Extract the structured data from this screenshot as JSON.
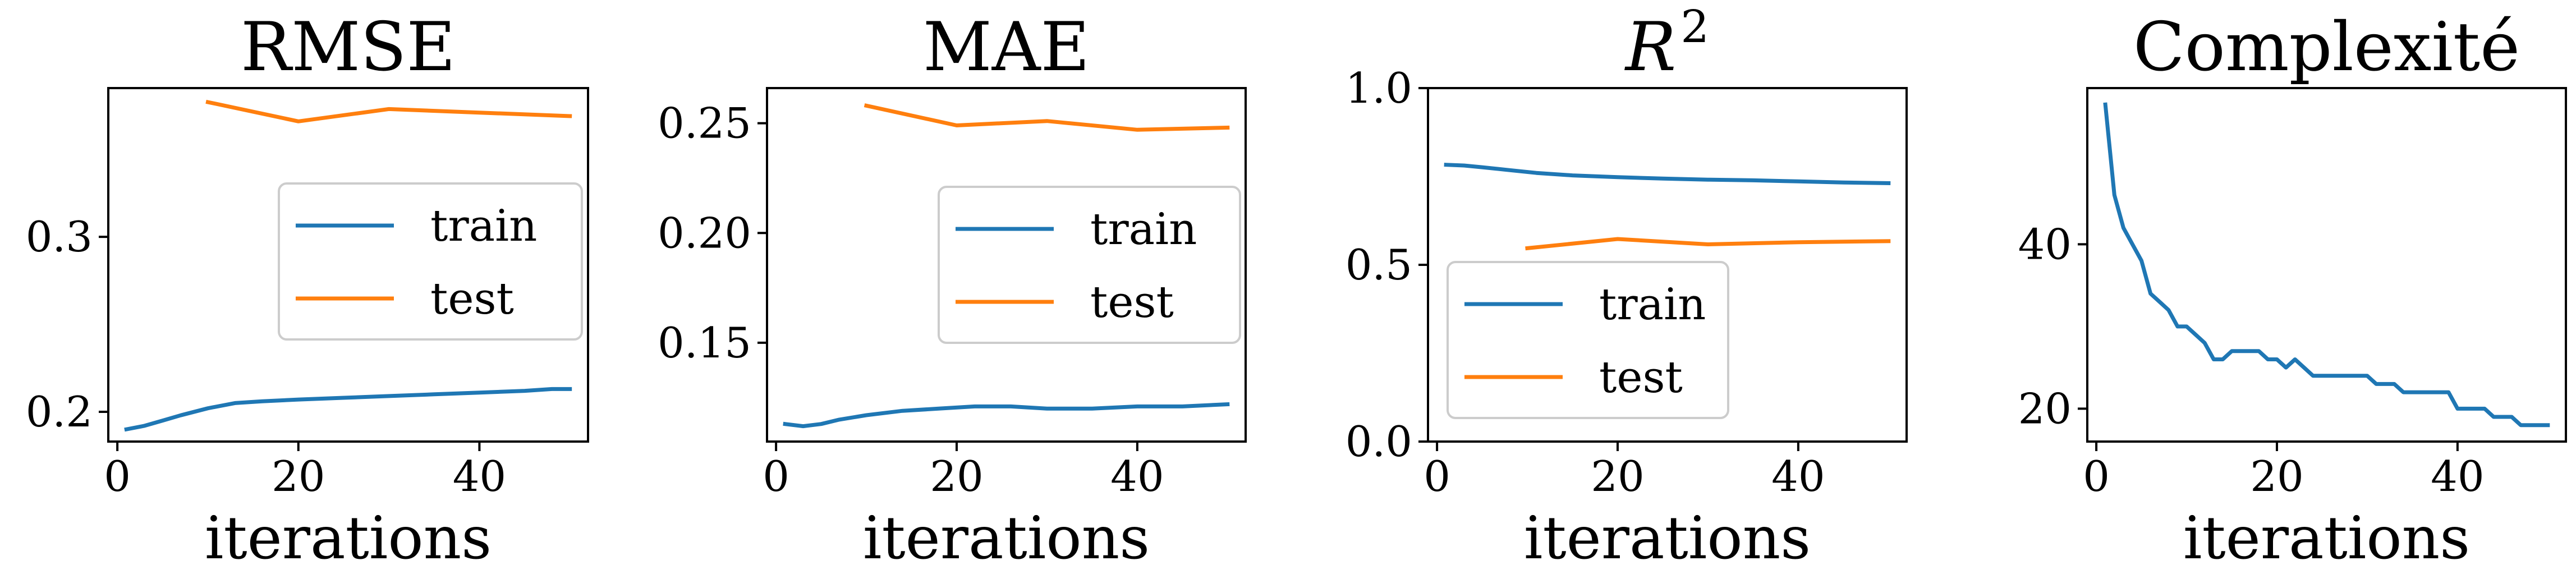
{
  "figure": {
    "colors": {
      "train": "#1f77b4",
      "test": "#ff7f0e",
      "axes": "#000000",
      "legend_border": "#cccccc"
    }
  },
  "chart_data": [
    {
      "type": "line",
      "title": "RMSE",
      "xlabel": "iterations",
      "ylabel": "",
      "xlim": [
        -1,
        52
      ],
      "ylim": [
        0.183,
        0.385
      ],
      "xticks": [
        0,
        20,
        40
      ],
      "xtick_labels": [
        "0",
        "20",
        "40"
      ],
      "yticks": [
        0.2,
        0.3
      ],
      "ytick_labels": [
        "0.2",
        "0.3"
      ],
      "grid": false,
      "legend": "center-right",
      "series": [
        {
          "name": "train",
          "color": "#1f77b4",
          "x": [
            1,
            3,
            5,
            7,
            10,
            13,
            16,
            20,
            25,
            30,
            35,
            40,
            45,
            48,
            50
          ],
          "y": [
            0.19,
            0.192,
            0.195,
            0.198,
            0.202,
            0.205,
            0.206,
            0.207,
            0.208,
            0.209,
            0.21,
            0.211,
            0.212,
            0.213,
            0.213
          ]
        },
        {
          "name": "test",
          "color": "#ff7f0e",
          "x": [
            10,
            20,
            30,
            40,
            50
          ],
          "y": [
            0.377,
            0.366,
            0.373,
            0.371,
            0.369
          ]
        }
      ]
    },
    {
      "type": "line",
      "title": "MAE",
      "xlabel": "iterations",
      "ylabel": "",
      "xlim": [
        -1,
        52
      ],
      "ylim": [
        0.105,
        0.266
      ],
      "xticks": [
        0,
        20,
        40
      ],
      "xtick_labels": [
        "0",
        "20",
        "40"
      ],
      "yticks": [
        0.15,
        0.2,
        0.25
      ],
      "ytick_labels": [
        "0.15",
        "0.20",
        "0.25"
      ],
      "grid": false,
      "legend": "center-right",
      "series": [
        {
          "name": "train",
          "color": "#1f77b4",
          "x": [
            1,
            3,
            5,
            7,
            10,
            14,
            18,
            22,
            26,
            30,
            35,
            40,
            45,
            50
          ],
          "y": [
            0.113,
            0.112,
            0.113,
            0.115,
            0.117,
            0.119,
            0.12,
            0.121,
            0.121,
            0.12,
            0.12,
            0.121,
            0.121,
            0.122
          ]
        },
        {
          "name": "test",
          "color": "#ff7f0e",
          "x": [
            10,
            20,
            30,
            40,
            50
          ],
          "y": [
            0.258,
            0.249,
            0.251,
            0.247,
            0.248
          ]
        }
      ]
    },
    {
      "type": "line",
      "title": "R",
      "title_sup": "2",
      "xlabel": "iterations",
      "ylabel": "",
      "xlim": [
        -1,
        52
      ],
      "ylim": [
        0.0,
        1.0
      ],
      "xticks": [
        0,
        20,
        40
      ],
      "xtick_labels": [
        "0",
        "20",
        "40"
      ],
      "yticks": [
        0.0,
        0.5,
        1.0
      ],
      "ytick_labels": [
        "0.0",
        "0.5",
        "1.0"
      ],
      "grid": false,
      "legend": "lower-left",
      "series": [
        {
          "name": "train",
          "color": "#1f77b4",
          "x": [
            1,
            3,
            5,
            8,
            11,
            15,
            20,
            25,
            30,
            35,
            40,
            45,
            50
          ],
          "y": [
            0.783,
            0.781,
            0.776,
            0.768,
            0.76,
            0.753,
            0.748,
            0.744,
            0.741,
            0.739,
            0.736,
            0.733,
            0.731
          ]
        },
        {
          "name": "test",
          "color": "#ff7f0e",
          "x": [
            10,
            20,
            30,
            40,
            50
          ],
          "y": [
            0.547,
            0.573,
            0.558,
            0.564,
            0.567
          ]
        }
      ]
    },
    {
      "type": "line",
      "title": "Complexité",
      "xlabel": "iterations",
      "ylabel": "",
      "xlim": [
        -1,
        52
      ],
      "ylim": [
        16,
        59
      ],
      "xticks": [
        0,
        20,
        40
      ],
      "xtick_labels": [
        "0",
        "20",
        "40"
      ],
      "yticks": [
        20,
        40
      ],
      "ytick_labels": [
        "20",
        "40"
      ],
      "grid": false,
      "legend": "none",
      "series": [
        {
          "name": "",
          "color": "#1f77b4",
          "x": [
            1,
            2,
            3,
            4,
            5,
            6,
            7,
            8,
            9,
            10,
            11,
            12,
            13,
            14,
            15,
            16,
            17,
            18,
            19,
            20,
            21,
            22,
            23,
            24,
            25,
            26,
            27,
            28,
            29,
            30,
            31,
            32,
            33,
            34,
            35,
            36,
            37,
            38,
            39,
            40,
            41,
            42,
            43,
            44,
            45,
            46,
            47,
            48,
            49,
            50
          ],
          "y": [
            57,
            46,
            42,
            40,
            38,
            34,
            33,
            32,
            30,
            30,
            29,
            28,
            26,
            26,
            27,
            27,
            27,
            27,
            26,
            26,
            25,
            26,
            25,
            24,
            24,
            24,
            24,
            24,
            24,
            24,
            23,
            23,
            23,
            22,
            22,
            22,
            22,
            22,
            22,
            20,
            20,
            20,
            20,
            19,
            19,
            19,
            18,
            18,
            18,
            18
          ]
        }
      ]
    }
  ]
}
